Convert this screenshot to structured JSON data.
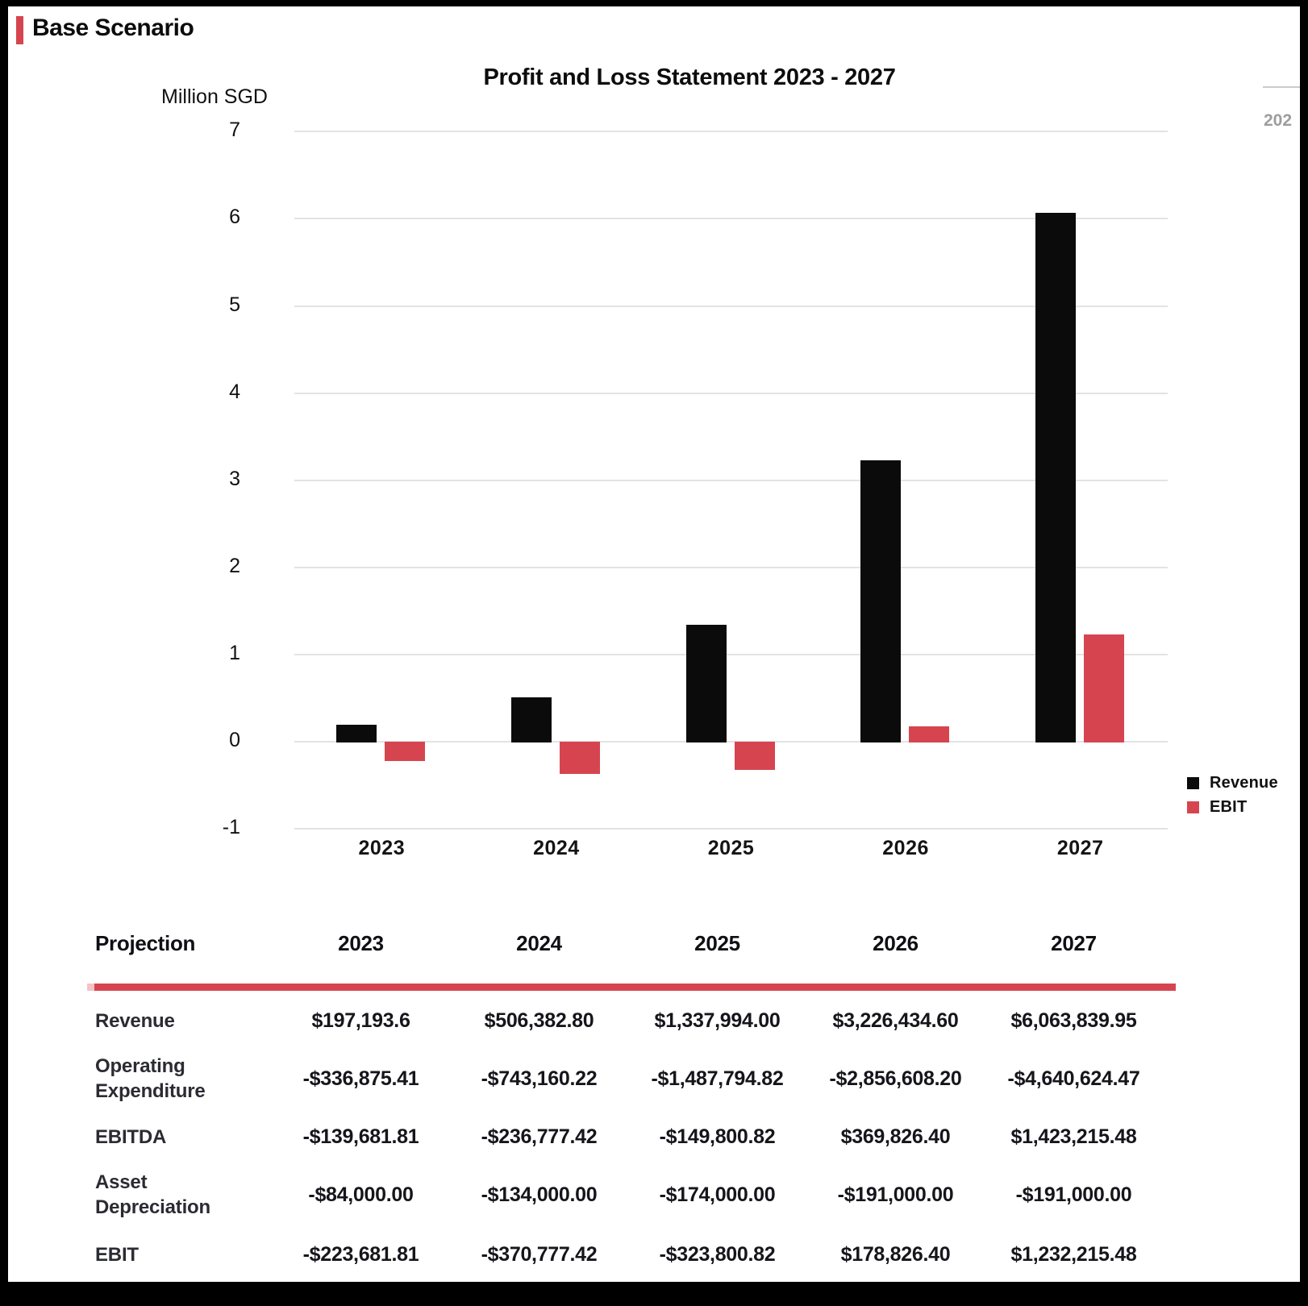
{
  "header": {
    "title": "Base Scenario"
  },
  "accent_color": "#d6454f",
  "chart": {
    "title": "Profit and Loss Statement 2023 - 2027",
    "y_axis_label": "Million SGD"
  },
  "chart_data": {
    "type": "bar",
    "title": "Profit and Loss Statement 2023 - 2027",
    "ylabel": "Million SGD",
    "categories": [
      "2023",
      "2024",
      "2025",
      "2026",
      "2027"
    ],
    "series": [
      {
        "name": "Revenue",
        "color": "#0b0b0b",
        "values": [
          0.197,
          0.506,
          1.338,
          3.226,
          6.064
        ]
      },
      {
        "name": "EBIT",
        "color": "#d6454f",
        "values": [
          -0.224,
          -0.371,
          -0.324,
          0.179,
          1.232
        ]
      }
    ],
    "ylim": [
      -1,
      7
    ],
    "y_ticks": [
      7,
      6,
      5,
      4,
      3,
      2,
      1,
      0,
      -1
    ],
    "grid": true,
    "legend_position": "right-bottom"
  },
  "misc": {
    "clipped_text_top_right": "202"
  },
  "table": {
    "header": [
      "Projection",
      "2023",
      "2024",
      "2025",
      "2026",
      "2027"
    ],
    "rows": [
      {
        "label": "Revenue",
        "values": [
          "$197,193.6",
          "$506,382.80",
          "$1,337,994.00",
          "$3,226,434.60",
          "$6,063,839.95"
        ]
      },
      {
        "label": "Operating Expenditure",
        "values": [
          "-$336,875.41",
          "-$743,160.22",
          "-$1,487,794.82",
          "-$2,856,608.20",
          "-$4,640,624.47"
        ]
      },
      {
        "label": "EBITDA",
        "values": [
          "-$139,681.81",
          "-$236,777.42",
          "-$149,800.82",
          "$369,826.40",
          "$1,423,215.48"
        ]
      },
      {
        "label": "Asset Depreciation",
        "values": [
          "-$84,000.00",
          "-$134,000.00",
          "-$174,000.00",
          "-$191,000.00",
          "-$191,000.00"
        ]
      },
      {
        "label": "EBIT",
        "values": [
          "-$223,681.81",
          "-$370,777.42",
          "-$323,800.82",
          "$178,826.40",
          "$1,232,215.48"
        ]
      }
    ]
  }
}
